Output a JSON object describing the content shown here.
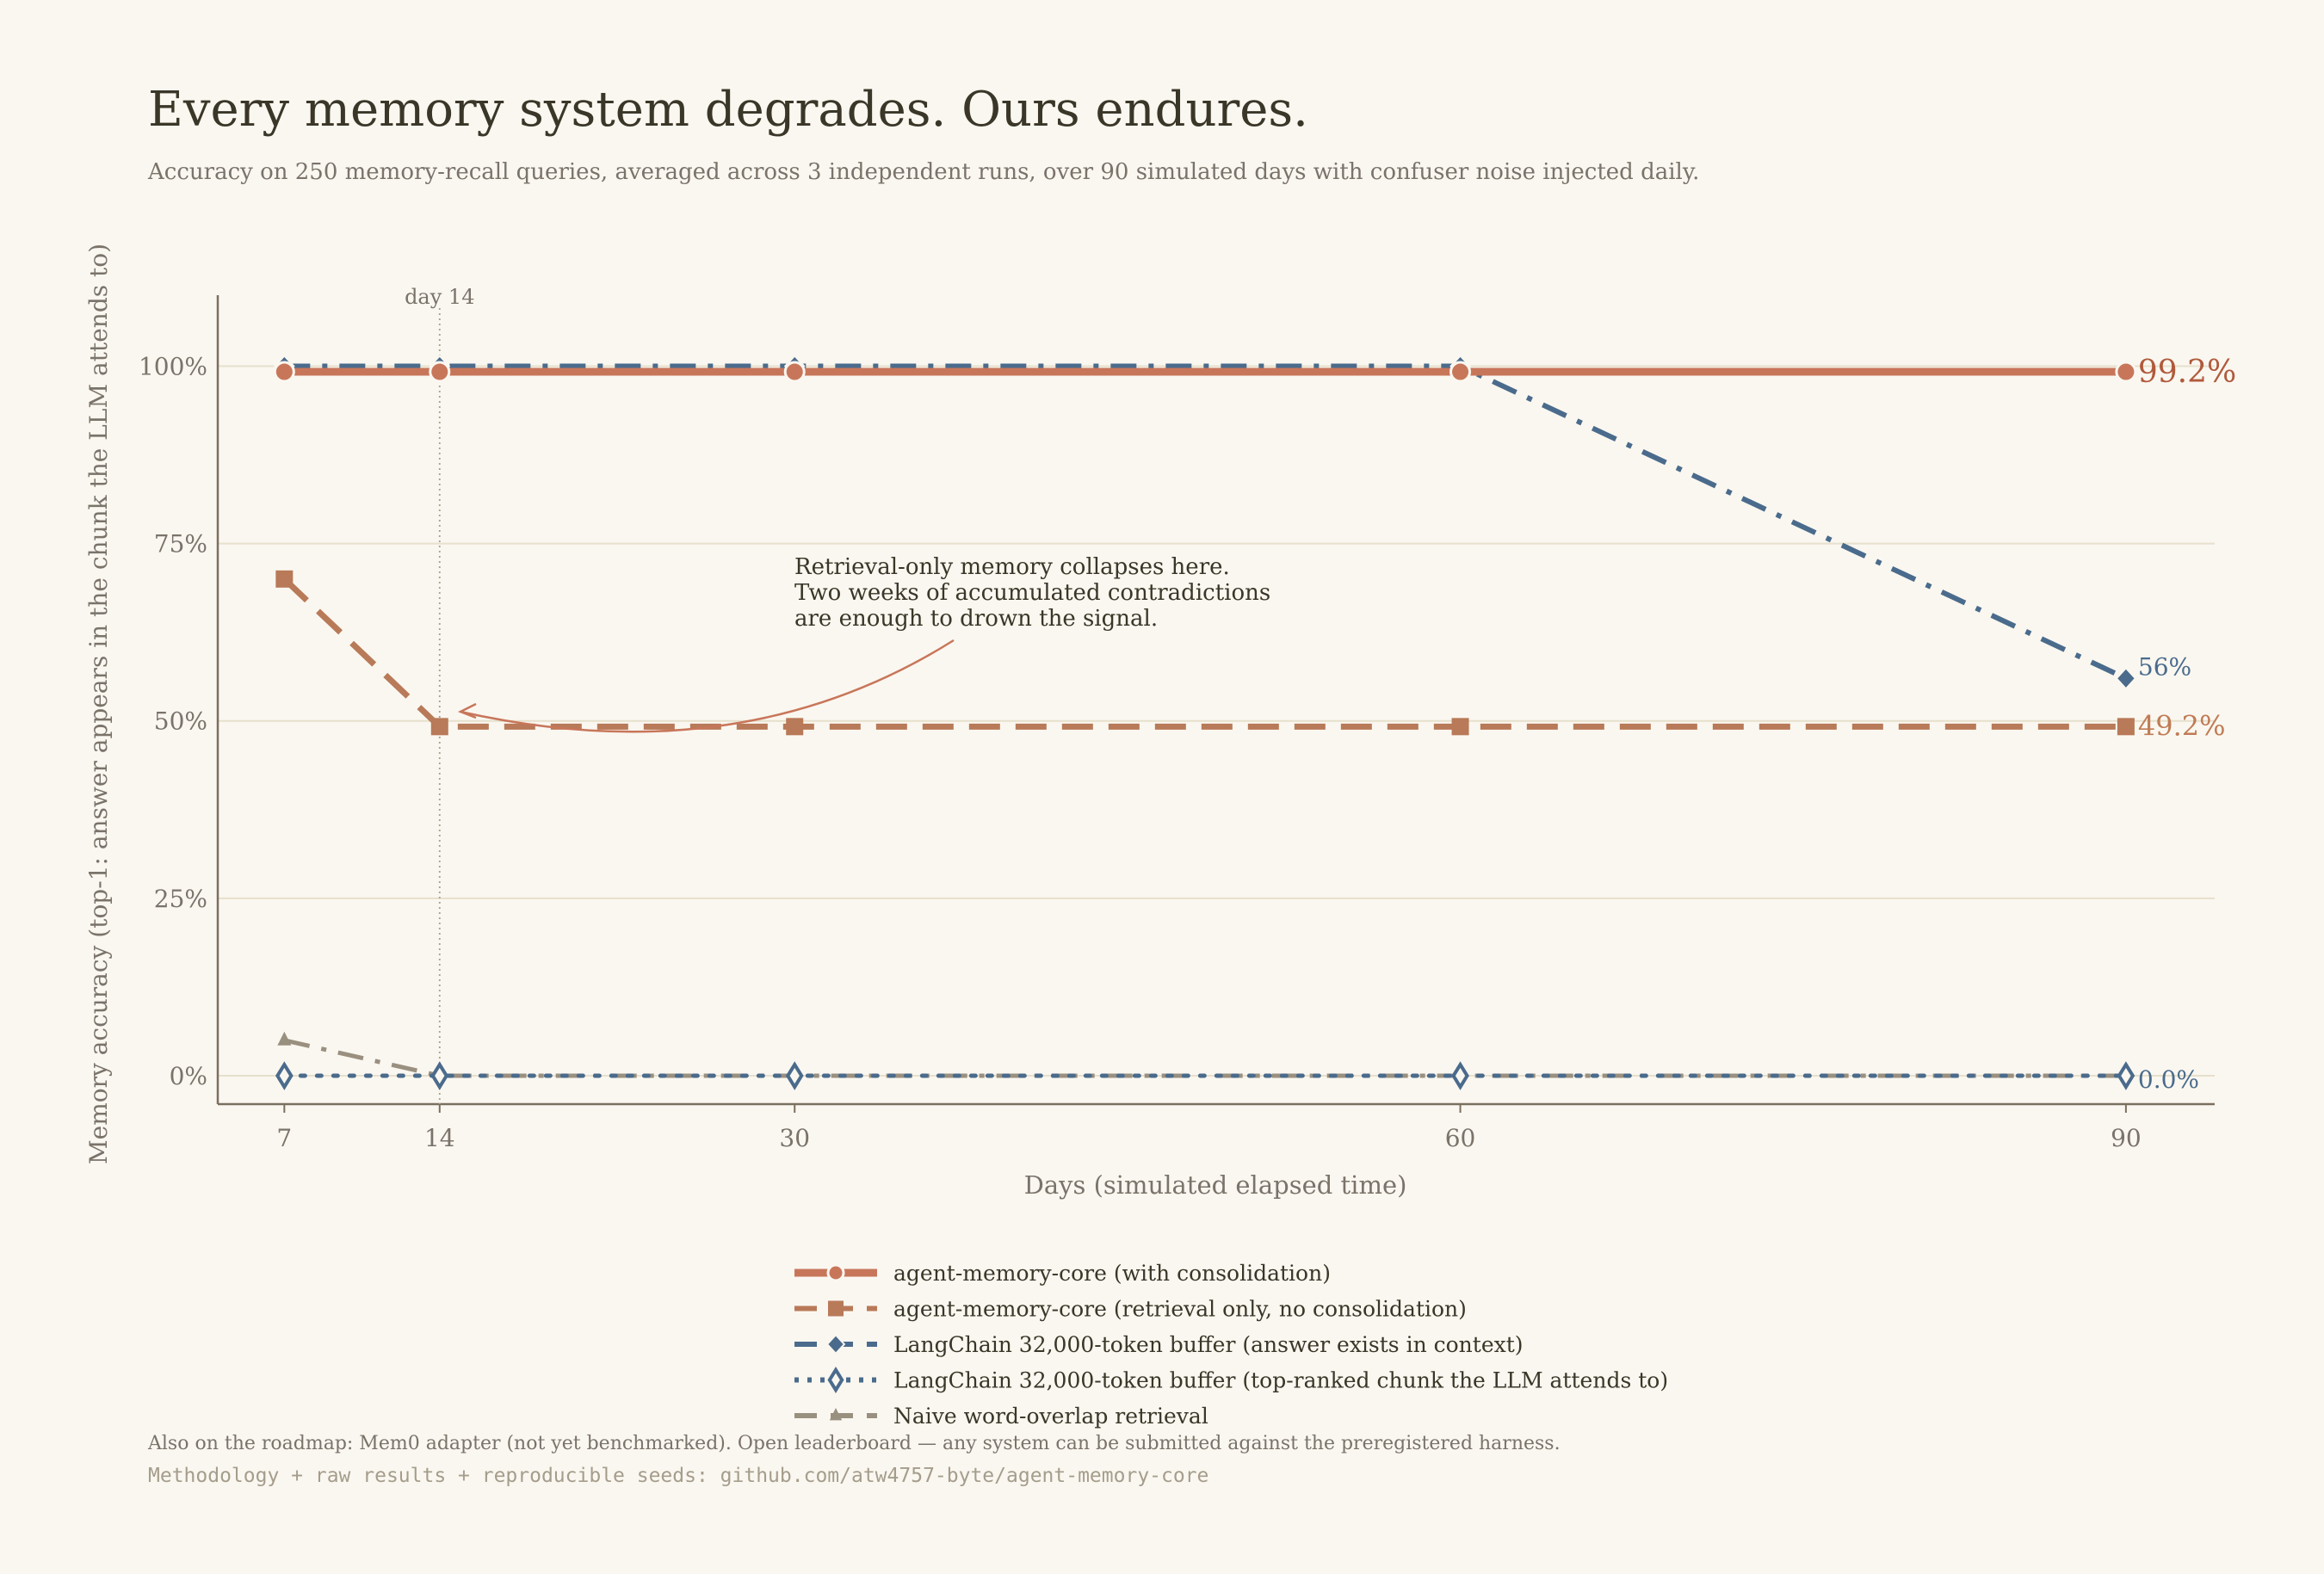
{
  "title": "Every memory system degrades. Ours endures.",
  "subtitle": "Accuracy on 250 memory-recall queries, averaged across 3 independent runs, over 90 simulated days with confuser noise injected daily.",
  "footer": {
    "note": "Also on the roadmap: Mem0 adapter (not yet benchmarked). Open leaderboard — any system can be submitted against the preregistered harness.",
    "link": "Methodology + raw results + reproducible seeds: github.com/atw4757-byte/agent-memory-core"
  },
  "chart_data": {
    "type": "line",
    "xlabel": "Days  (simulated elapsed time)",
    "ylabel": "Memory accuracy  (top-1: answer appears in the chunk the LLM attends to)",
    "x": [
      7,
      14,
      30,
      60,
      90
    ],
    "x_ticks": [
      "7",
      "14",
      "30",
      "60",
      "90"
    ],
    "y_ticks": [
      "0%",
      "25%",
      "50%",
      "75%",
      "100%"
    ],
    "xlim": [
      4,
      94
    ],
    "ylim": [
      -4,
      110
    ],
    "grid": "horizontal",
    "legend_placement": "bottom-center",
    "reference_line": {
      "x": 14,
      "label": "day 14"
    },
    "annotation": {
      "lines": [
        "Retrieval-only memory collapses here.",
        "Two weeks of accumulated contradictions",
        "are enough to drown the signal."
      ],
      "points_to": {
        "x": 14,
        "y": 49.2
      }
    },
    "series": [
      {
        "name": "agent-memory-core (with consolidation)",
        "values": [
          99.2,
          99.2,
          99.2,
          99.2,
          99.2
        ],
        "color": "#c8765a",
        "marker": "circle",
        "style": "solid",
        "end_label": "99.2%"
      },
      {
        "name": "agent-memory-core (retrieval only, no consolidation)",
        "values": [
          70,
          49.2,
          49.2,
          49.2,
          49.2
        ],
        "color": "#b87a58",
        "marker": "square",
        "style": "dashed",
        "end_label": "49.2%"
      },
      {
        "name": "LangChain 32,000-token buffer (answer exists in context)",
        "values": [
          100,
          100,
          100,
          100,
          56
        ],
        "color": "#4a6b8c",
        "marker": "diamond",
        "style": "dashdot",
        "end_label": "56%"
      },
      {
        "name": "LangChain 32,000-token buffer (top-ranked chunk the LLM attends to)",
        "values": [
          0,
          0,
          0,
          0,
          0
        ],
        "color": "#4a6b8c",
        "marker": "diamond-open",
        "style": "dotted",
        "end_label": "0.0%"
      },
      {
        "name": "Naive word-overlap retrieval",
        "values": [
          5,
          0,
          0,
          0,
          0
        ],
        "color": "#9a9080",
        "marker": "triangle",
        "style": "dashdot"
      }
    ]
  }
}
